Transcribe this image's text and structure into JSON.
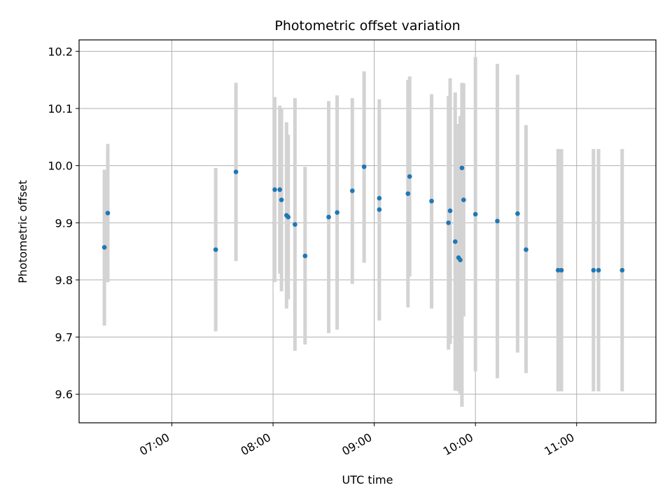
{
  "chart_data": {
    "type": "scatter",
    "title": "Photometric offset variation",
    "xlabel": "UTC time",
    "ylabel": "Photometric offset",
    "x_unit": "time of day (UTC, HH:MM)",
    "xlim": [
      "06:05",
      "11:47"
    ],
    "ylim": [
      9.55,
      10.22
    ],
    "grid": true,
    "x_ticks": [
      "07:00",
      "08:00",
      "09:00",
      "10:00",
      "11:00"
    ],
    "y_ticks": [
      "9.6",
      "9.7",
      "9.8",
      "9.9",
      "10.0",
      "10.1",
      "10.2"
    ],
    "point_color": "#1f77b4",
    "errorbar_color": "#d3d3d3",
    "points": [
      {
        "x": "06:20",
        "y": 9.857,
        "lo": 9.72,
        "hi": 9.993
      },
      {
        "x": "06:22",
        "y": 9.917,
        "lo": 9.796,
        "hi": 10.038
      },
      {
        "x": "07:26",
        "y": 9.853,
        "lo": 9.71,
        "hi": 9.996
      },
      {
        "x": "07:38",
        "y": 9.989,
        "lo": 9.833,
        "hi": 10.145
      },
      {
        "x": "08:01",
        "y": 9.958,
        "lo": 9.796,
        "hi": 10.12
      },
      {
        "x": "08:04",
        "y": 9.958,
        "lo": 9.811,
        "hi": 10.105
      },
      {
        "x": "08:05",
        "y": 9.94,
        "lo": 9.78,
        "hi": 10.1
      },
      {
        "x": "08:08",
        "y": 9.913,
        "lo": 9.75,
        "hi": 10.076
      },
      {
        "x": "08:09",
        "y": 9.91,
        "lo": 9.766,
        "hi": 10.054
      },
      {
        "x": "08:13",
        "y": 9.897,
        "lo": 9.676,
        "hi": 10.118
      },
      {
        "x": "08:19",
        "y": 9.842,
        "lo": 9.687,
        "hi": 9.998
      },
      {
        "x": "08:33",
        "y": 9.91,
        "lo": 9.707,
        "hi": 10.113
      },
      {
        "x": "08:38",
        "y": 9.918,
        "lo": 9.713,
        "hi": 10.123
      },
      {
        "x": "08:47",
        "y": 9.956,
        "lo": 9.793,
        "hi": 10.118
      },
      {
        "x": "08:54",
        "y": 9.998,
        "lo": 9.83,
        "hi": 10.165
      },
      {
        "x": "09:03",
        "y": 9.943,
        "lo": 9.8,
        "hi": 10.086
      },
      {
        "x": "09:03",
        "y": 9.923,
        "lo": 9.729,
        "hi": 10.116
      },
      {
        "x": "09:20",
        "y": 9.951,
        "lo": 9.752,
        "hi": 10.15
      },
      {
        "x": "09:21",
        "y": 9.981,
        "lo": 9.806,
        "hi": 10.156
      },
      {
        "x": "09:34",
        "y": 9.938,
        "lo": 9.75,
        "hi": 10.125
      },
      {
        "x": "09:44",
        "y": 9.9,
        "lo": 9.678,
        "hi": 10.122
      },
      {
        "x": "09:45",
        "y": 9.921,
        "lo": 9.688,
        "hi": 10.153
      },
      {
        "x": "09:48",
        "y": 9.867,
        "lo": 9.606,
        "hi": 10.128
      },
      {
        "x": "09:50",
        "y": 9.839,
        "lo": 9.605,
        "hi": 10.073
      },
      {
        "x": "09:51",
        "y": 9.835,
        "lo": 9.6,
        "hi": 10.087
      },
      {
        "x": "09:52",
        "y": 9.996,
        "lo": 9.578,
        "hi": 10.145
      },
      {
        "x": "09:53",
        "y": 9.94,
        "lo": 9.736,
        "hi": 10.144
      },
      {
        "x": "10:00",
        "y": 9.915,
        "lo": 9.64,
        "hi": 10.19
      },
      {
        "x": "10:13",
        "y": 9.903,
        "lo": 9.628,
        "hi": 10.178
      },
      {
        "x": "10:25",
        "y": 9.916,
        "lo": 9.673,
        "hi": 10.159
      },
      {
        "x": "10:30",
        "y": 9.853,
        "lo": 9.637,
        "hi": 10.071
      },
      {
        "x": "10:49",
        "y": 9.817,
        "lo": 9.605,
        "hi": 10.029
      },
      {
        "x": "10:51",
        "y": 9.817,
        "lo": 9.605,
        "hi": 10.029
      },
      {
        "x": "11:10",
        "y": 9.817,
        "lo": 9.605,
        "hi": 10.029
      },
      {
        "x": "11:13",
        "y": 9.817,
        "lo": 9.605,
        "hi": 10.029
      },
      {
        "x": "11:27",
        "y": 9.817,
        "lo": 9.605,
        "hi": 10.029
      }
    ]
  }
}
